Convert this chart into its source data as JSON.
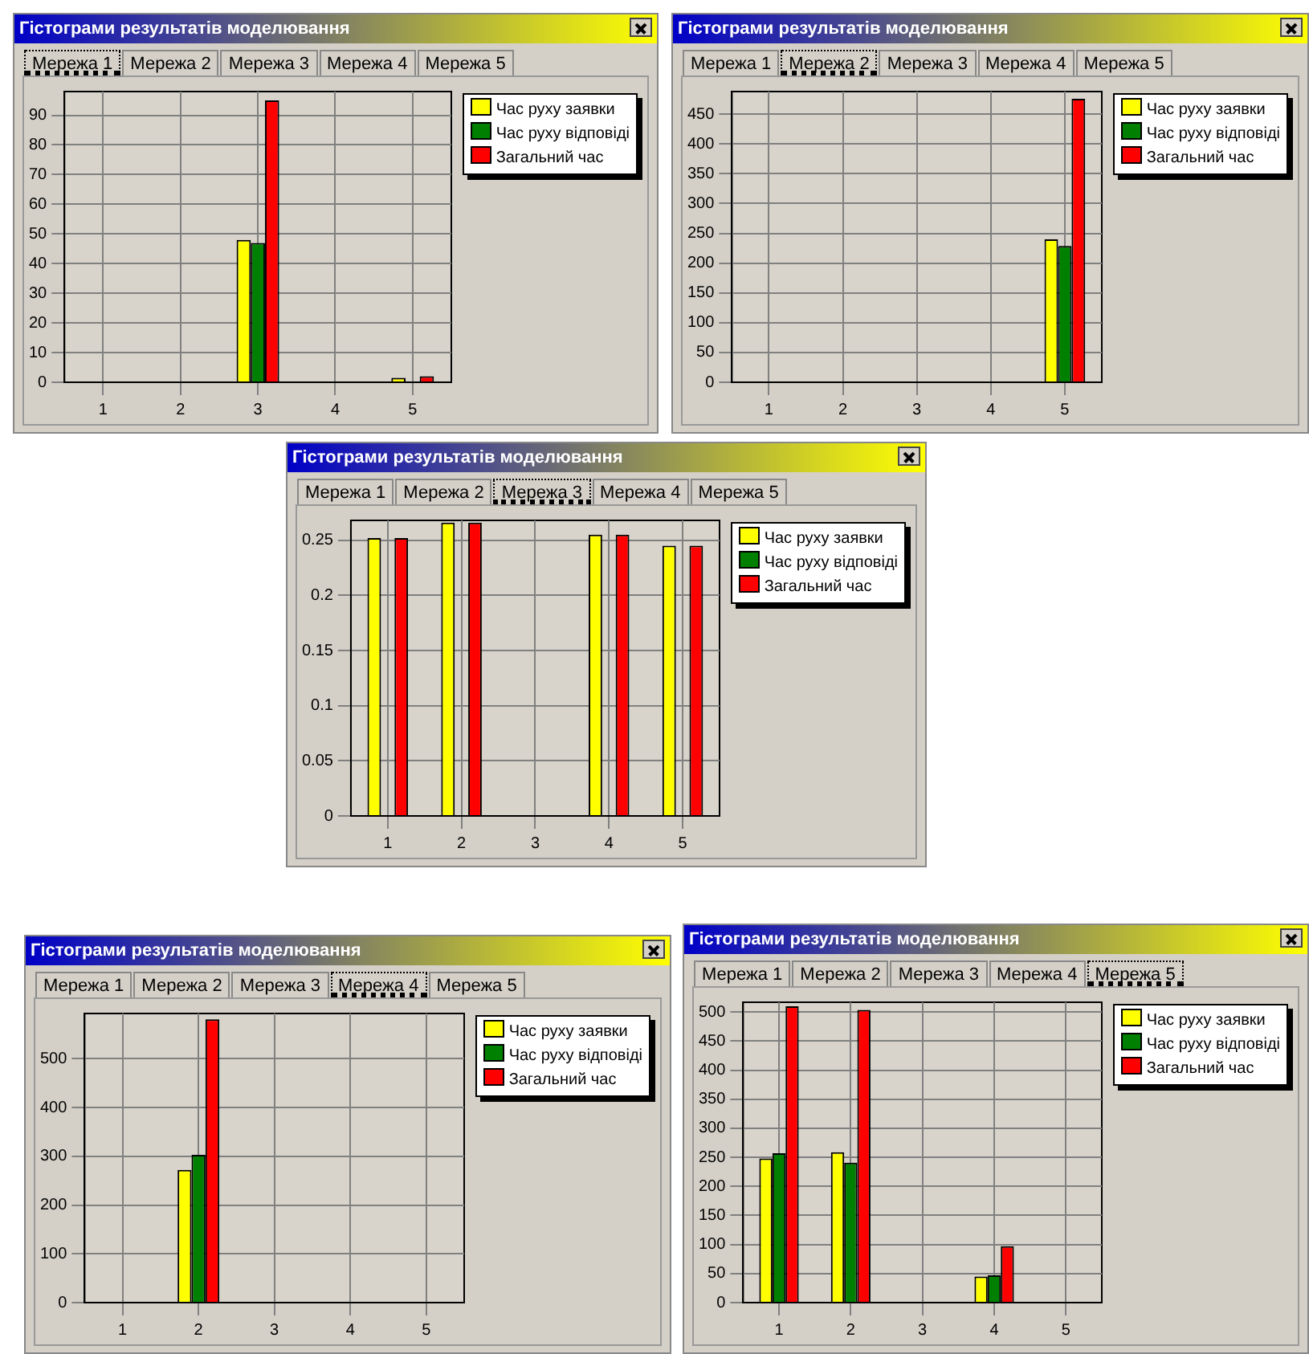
{
  "chart_data": [
    {
      "type": "bar",
      "title": "Гістограми результатів моделювання",
      "annotations": [
        "Мережа 1",
        "Мережа 2",
        "Мережа 3",
        "Мережа 4",
        "Мережа 5"
      ],
      "categories": [
        "1",
        "2",
        "3",
        "4",
        "5"
      ],
      "series": [
        {
          "name": "Час руху заявки",
          "color": "#ffff00",
          "values": [
            0,
            0,
            48,
            0,
            1.5
          ]
        },
        {
          "name": "Час руху відповіді",
          "color": "#008000",
          "values": [
            0,
            0,
            47,
            0,
            0
          ]
        },
        {
          "name": "Загальний час",
          "color": "#ff0000",
          "values": [
            0,
            0,
            95,
            0,
            2
          ]
        }
      ],
      "ylim": [
        0,
        98
      ],
      "yticks": [
        0,
        10,
        20,
        30,
        40,
        50,
        60,
        70,
        80,
        90
      ],
      "grid": true,
      "legend": "top right"
    },
    {
      "type": "bar",
      "title": "Гістограми результатів моделювання",
      "annotations": [
        "Мережа 1",
        "Мережа 2",
        "Мережа 3",
        "Мережа 4",
        "Мережа 5"
      ],
      "categories": [
        "1",
        "2",
        "3",
        "4",
        "5"
      ],
      "series": [
        {
          "name": "Час руху заявки",
          "color": "#ffff00",
          "values": [
            0,
            0,
            0,
            0,
            240
          ]
        },
        {
          "name": "Час руху відповіді",
          "color": "#008000",
          "values": [
            0,
            0,
            0,
            0,
            229
          ]
        },
        {
          "name": "Загальний час",
          "color": "#ff0000",
          "values": [
            0,
            0,
            0,
            0,
            476
          ]
        }
      ],
      "ylim": [
        0,
        488
      ],
      "yticks": [
        0,
        50,
        100,
        150,
        200,
        250,
        300,
        350,
        400,
        450
      ],
      "grid": true,
      "legend": "top right"
    },
    {
      "type": "bar",
      "title": "Гістограми результатів моделювання",
      "annotations": [
        "Мережа 1",
        "Мережа 2",
        "Мережа 3",
        "Мережа 4",
        "Мережа 5"
      ],
      "categories": [
        "1",
        "2",
        "3",
        "4",
        "5"
      ],
      "series": [
        {
          "name": "Час руху заявки",
          "color": "#ffff00",
          "values": [
            0.252,
            0.266,
            0,
            0.255,
            0.245
          ]
        },
        {
          "name": "Час руху відповіді",
          "color": "#008000",
          "values": [
            0,
            0,
            0,
            0,
            0
          ]
        },
        {
          "name": "Загальний час",
          "color": "#ff0000",
          "values": [
            0.252,
            0.266,
            0,
            0.255,
            0.245
          ]
        }
      ],
      "ylim": [
        0,
        0.268
      ],
      "yticks": [
        0,
        0.05,
        0.1,
        0.15,
        0.2,
        0.25
      ],
      "grid": true,
      "legend": "top right"
    },
    {
      "type": "bar",
      "title": "Гістограми результатів моделювання",
      "annotations": [
        "Мережа 1",
        "Мережа 2",
        "Мережа 3",
        "Мережа 4",
        "Мережа 5"
      ],
      "categories": [
        "1",
        "2",
        "3",
        "4",
        "5"
      ],
      "series": [
        {
          "name": "Час руху заявки",
          "color": "#ffff00",
          "values": [
            0,
            272,
            0,
            0,
            0
          ]
        },
        {
          "name": "Час руху відповіді",
          "color": "#008000",
          "values": [
            0,
            303,
            0,
            0,
            0
          ]
        },
        {
          "name": "Загальний час",
          "color": "#ff0000",
          "values": [
            0,
            581,
            0,
            0,
            0
          ]
        }
      ],
      "ylim": [
        0,
        593
      ],
      "yticks": [
        0,
        100,
        200,
        300,
        400,
        500
      ],
      "grid": true,
      "legend": "top right"
    },
    {
      "type": "bar",
      "title": "Гістограми результатів моделювання",
      "annotations": [
        "Мережа 1",
        "Мережа 2",
        "Мережа 3",
        "Мережа 4",
        "Мережа 5"
      ],
      "categories": [
        "1",
        "2",
        "3",
        "4",
        "5"
      ],
      "series": [
        {
          "name": "Час руху заявки",
          "color": "#ffff00",
          "values": [
            248,
            259,
            0,
            45,
            0
          ]
        },
        {
          "name": "Час руху відповіді",
          "color": "#008000",
          "values": [
            257,
            241,
            0,
            47,
            0
          ]
        },
        {
          "name": "Загальний час",
          "color": "#ff0000",
          "values": [
            510,
            504,
            0,
            97,
            0
          ]
        }
      ],
      "ylim": [
        0,
        517
      ],
      "yticks": [
        0,
        50,
        100,
        150,
        200,
        250,
        300,
        350,
        400,
        450,
        500
      ],
      "grid": true,
      "legend": "top right"
    }
  ]
}
